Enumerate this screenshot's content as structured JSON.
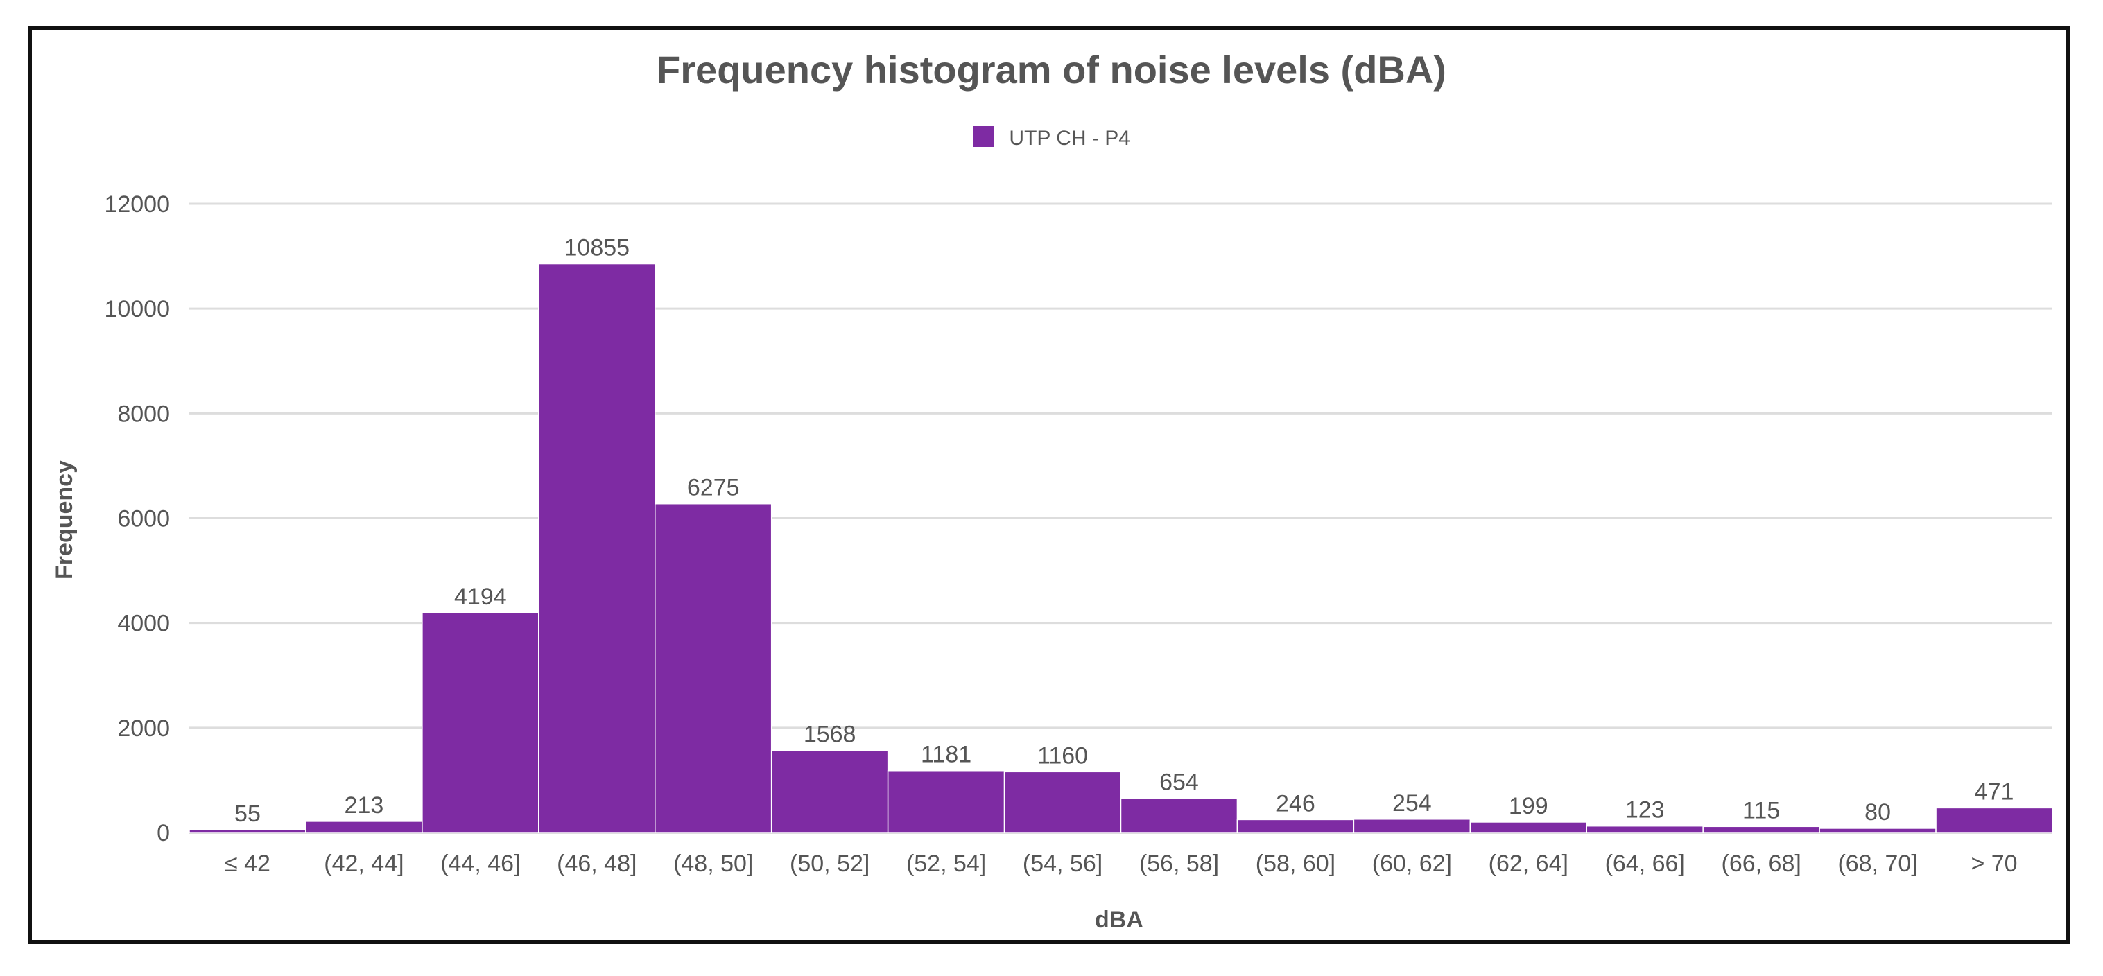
{
  "chart_data": {
    "type": "bar",
    "title": "Frequency histogram of noise levels (dBA)",
    "xlabel": "dBA",
    "ylabel": "Frequency",
    "ylim": [
      0,
      12000
    ],
    "yticks": [
      0,
      2000,
      4000,
      6000,
      8000,
      10000,
      12000
    ],
    "grid": true,
    "legend_position": "top-center",
    "categories": [
      "≤ 42",
      "(42, 44]",
      "(44, 46]",
      "(46, 48]",
      "(48, 50]",
      "(50, 52]",
      "(52, 54]",
      "(54, 56]",
      "(56, 58]",
      "(58, 60]",
      "(60, 62]",
      "(62, 64]",
      "(64, 66]",
      "(66, 68]",
      "(68, 70]",
      "> 70"
    ],
    "series": [
      {
        "name": "UTP CH - P4",
        "color": "#7e2ba3",
        "values": [
          55,
          213,
          4194,
          10855,
          6275,
          1568,
          1181,
          1160,
          654,
          246,
          254,
          199,
          123,
          115,
          80,
          471
        ]
      }
    ]
  }
}
